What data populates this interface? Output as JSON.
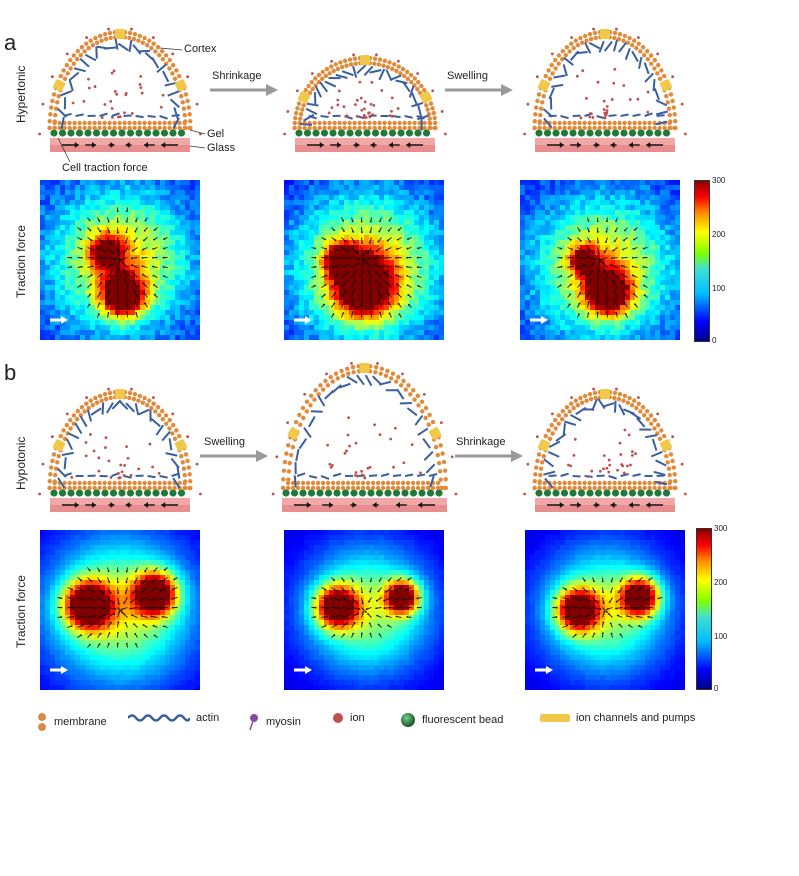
{
  "panels": {
    "a": {
      "letter": "a",
      "row_label_cell": "Hypertonic",
      "row_label_traction": "Traction force",
      "arrow_1": "Shrinkage",
      "arrow_2": "Swelling",
      "annotations": {
        "cortex": "Cortex",
        "gel": "Gel",
        "glass": "Glass",
        "cell_traction_force": "Cell traction force"
      },
      "colorbar": {
        "max": "300",
        "t200": "200",
        "t100": "100",
        "min": "0"
      }
    },
    "b": {
      "letter": "b",
      "row_label_cell": "Hypotonic",
      "row_label_traction": "Traction force",
      "arrow_1": "Swelling",
      "arrow_2": "Shrinkage",
      "colorbar": {
        "max": "300",
        "t200": "200",
        "t100": "100",
        "min": "0"
      }
    }
  },
  "legend": {
    "membrane": "membrane",
    "actin": "actin",
    "myosin": "myosin",
    "ion": "ion",
    "bead": "fluorescent bead",
    "channels": "ion channels and pumps"
  },
  "colors": {
    "membrane": "#e08a3a",
    "actin": "#3a5fa0",
    "myosin": "#8a4aa8",
    "ion": "#c0504d",
    "bead": "#1e7a3a",
    "channel": "#f0c94a",
    "glass": "#f0a8a8",
    "arrow": "#999999"
  }
}
